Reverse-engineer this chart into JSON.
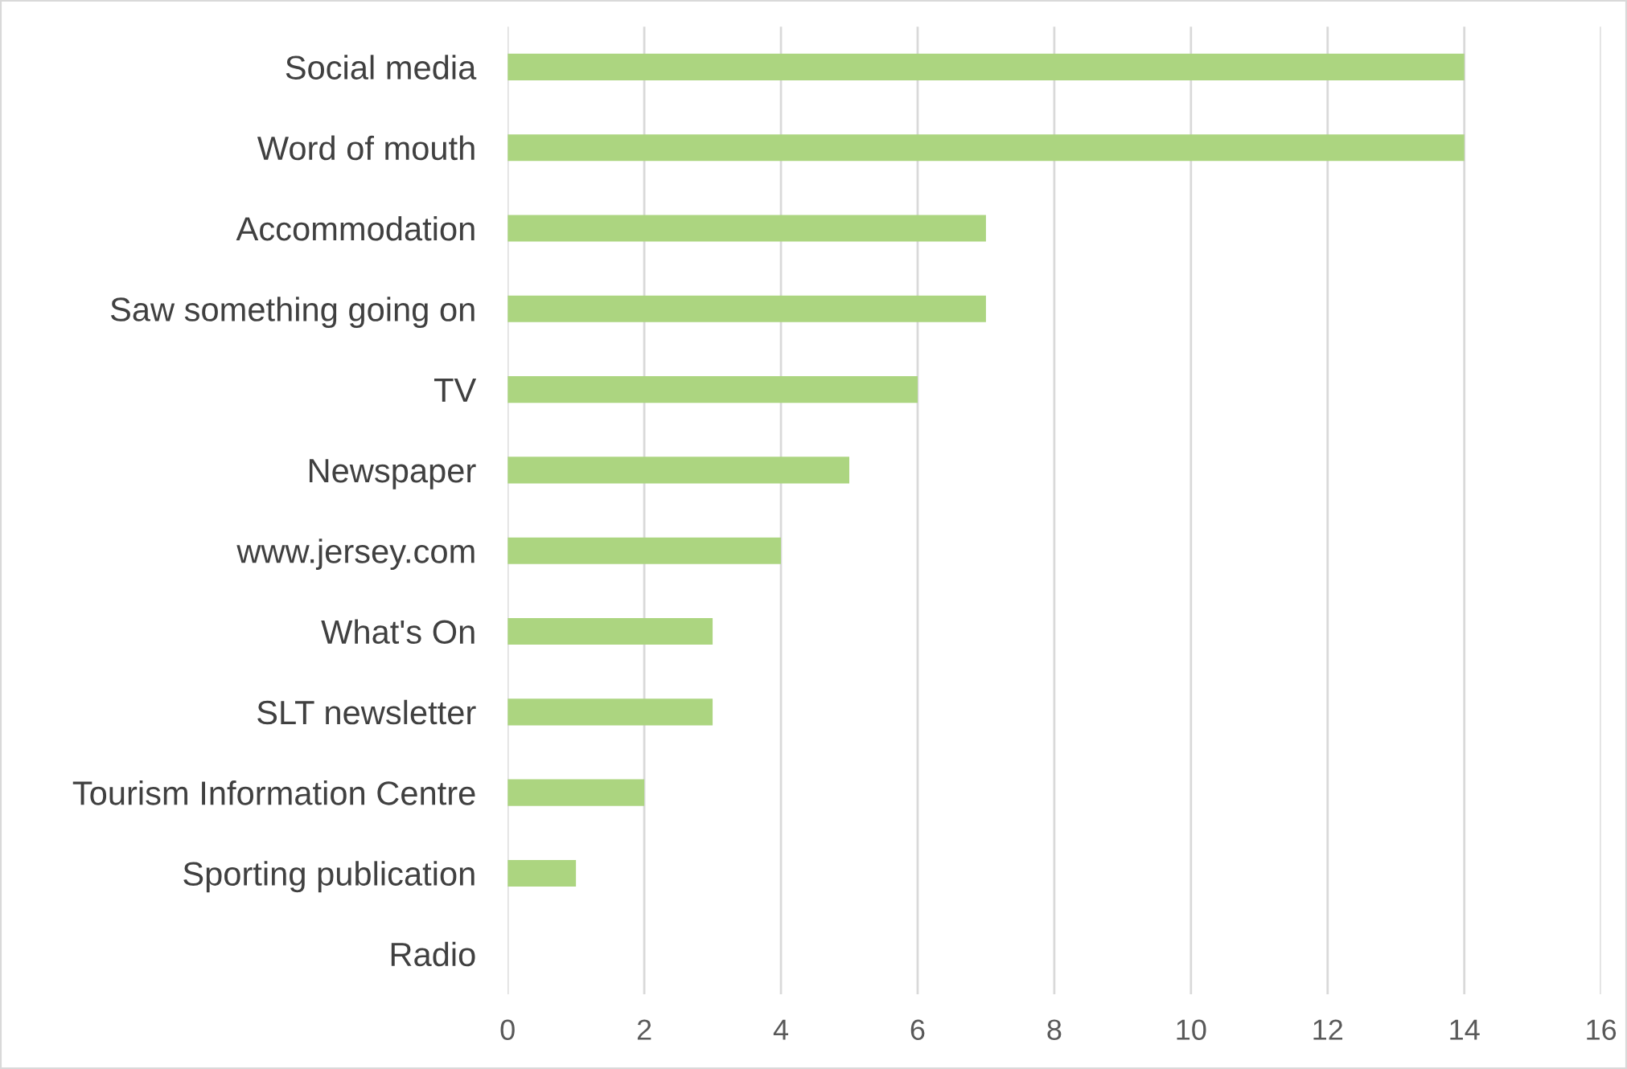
{
  "chart_data": {
    "type": "bar",
    "orientation": "horizontal",
    "categories": [
      "Social media",
      "Word of mouth",
      "Accommodation",
      "Saw something going on",
      "TV",
      "Newspaper",
      "www.jersey.com",
      "What's On",
      "SLT newsletter",
      "Tourism Information Centre",
      "Sporting publication",
      "Radio"
    ],
    "values": [
      14,
      14,
      7,
      7,
      6,
      5,
      4,
      3,
      3,
      2,
      1,
      0
    ],
    "color": "#acd580",
    "xlim": [
      0,
      16
    ],
    "xticks": [
      0,
      2,
      4,
      6,
      8,
      10,
      12,
      14,
      16
    ],
    "grid": "x",
    "legend": false
  }
}
